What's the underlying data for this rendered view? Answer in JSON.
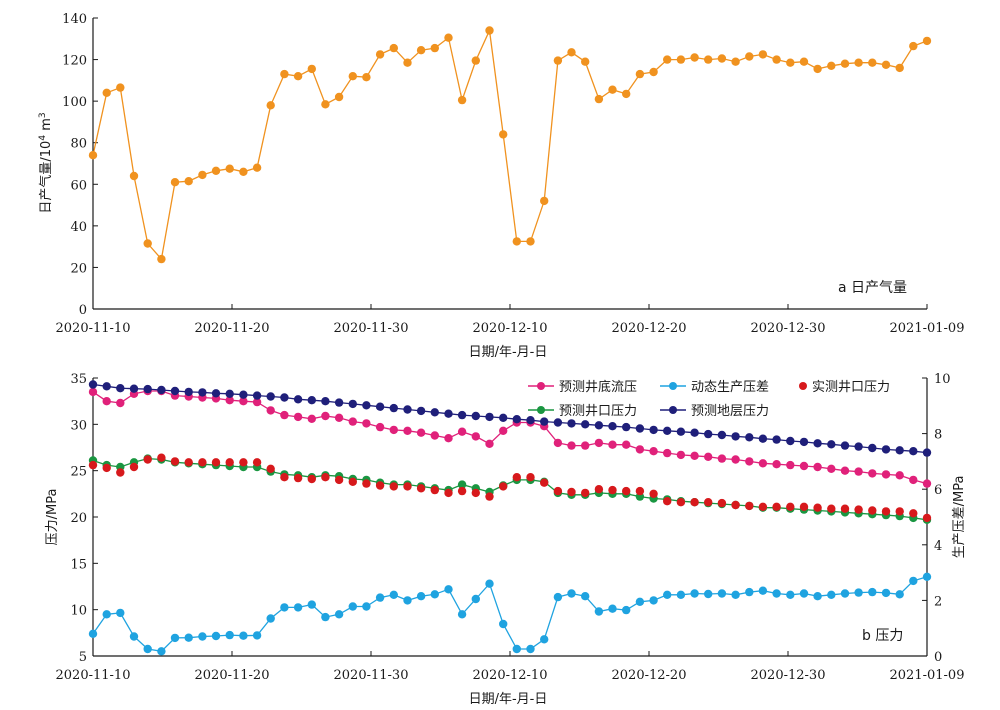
{
  "chart_data": [
    {
      "id": "a",
      "type": "line",
      "annotation": "a 日产气量",
      "xlabel": "日期/年-月-日",
      "ylabel": "日产气量/10",
      "ylabel_power": "4",
      "ylabel_unit": " m",
      "ylabel_unit_power": "3",
      "ylim": [
        0,
        140
      ],
      "yticks": [
        0,
        20,
        40,
        60,
        80,
        100,
        120,
        140
      ],
      "x_start": "2020-11-10",
      "x_span_days": 60,
      "xticks": [
        "2020-11-10",
        "2020-11-20",
        "2020-11-30",
        "2020-12-10",
        "2020-12-20",
        "2020-12-30",
        "2021-01-09"
      ],
      "xtick_days": [
        0,
        10,
        20,
        30,
        40,
        50,
        60
      ],
      "series": [
        {
          "name": "日产气量",
          "color": "#f0921f",
          "values": [
            74,
            104,
            106.5,
            64,
            31.5,
            24,
            61,
            61.5,
            64.5,
            66.5,
            67.5,
            66,
            68,
            98,
            113,
            112,
            115.5,
            98.5,
            102,
            112,
            111.5,
            122.5,
            125.5,
            118.5,
            124.5,
            125.5,
            130.5,
            100.5,
            119.5,
            134,
            84,
            32.5,
            32.5,
            52,
            119.5,
            123.5,
            119,
            101,
            105.5,
            103.5,
            113,
            114,
            120,
            120,
            121,
            120,
            120.5,
            119,
            121.5,
            122.5,
            120,
            118.5,
            119,
            115.5,
            117,
            118,
            118.5,
            118.5,
            117.5,
            116,
            126.5,
            129
          ]
        }
      ]
    },
    {
      "id": "b",
      "type": "line",
      "annotation": "b 压力",
      "xlabel": "日期/年-月-日",
      "ylabel": "压力/MPa",
      "y2label": "生产压差/MPa",
      "ylim": [
        5,
        35
      ],
      "yticks": [
        5,
        10,
        15,
        20,
        25,
        30,
        35
      ],
      "y2lim": [
        0,
        10
      ],
      "y2ticks": [
        0,
        2,
        4,
        6,
        8,
        10
      ],
      "x_start": "2020-11-10",
      "x_span_days": 60,
      "xticks": [
        "2020-11-10",
        "2020-11-20",
        "2020-11-30",
        "2020-12-10",
        "2020-12-20",
        "2020-12-30",
        "2021-01-09"
      ],
      "xtick_days": [
        0,
        10,
        20,
        30,
        40,
        50,
        60
      ],
      "legend": [
        "预测井底流压",
        "动态生产压差",
        "实测井口压力",
        "预测井口压力",
        "预测地层压力"
      ],
      "series": [
        {
          "name": "预测井底流压",
          "color": "#e0217a",
          "axis": "left",
          "markers_only": false,
          "values": [
            33.5,
            32.5,
            32.3,
            33.3,
            33.6,
            33.6,
            33.1,
            33.0,
            32.9,
            32.8,
            32.6,
            32.5,
            32.4,
            31.5,
            31.0,
            30.8,
            30.6,
            30.9,
            30.7,
            30.3,
            30.1,
            29.7,
            29.4,
            29.3,
            29.1,
            28.8,
            28.5,
            29.2,
            28.7,
            27.9,
            29.3,
            30.2,
            30.2,
            29.8,
            28.0,
            27.7,
            27.7,
            28.0,
            27.8,
            27.8,
            27.3,
            27.1,
            26.9,
            26.7,
            26.6,
            26.5,
            26.3,
            26.2,
            26.0,
            25.8,
            25.7,
            25.6,
            25.5,
            25.4,
            25.2,
            25.0,
            24.9,
            24.7,
            24.6,
            24.5,
            24.0,
            23.6
          ]
        },
        {
          "name": "预测井口压力",
          "color": "#1a9641",
          "axis": "left",
          "markers_only": false,
          "values": [
            26.1,
            25.6,
            25.4,
            25.9,
            26.3,
            26.2,
            25.9,
            25.8,
            25.7,
            25.6,
            25.5,
            25.4,
            25.4,
            24.9,
            24.6,
            24.5,
            24.3,
            24.5,
            24.4,
            24.1,
            24.0,
            23.7,
            23.5,
            23.5,
            23.3,
            23.1,
            22.9,
            23.5,
            23.1,
            22.7,
            23.4,
            24.0,
            24.0,
            23.8,
            22.6,
            22.4,
            22.4,
            22.6,
            22.5,
            22.5,
            22.2,
            22.0,
            21.9,
            21.7,
            21.6,
            21.5,
            21.4,
            21.3,
            21.2,
            21.0,
            21.0,
            20.9,
            20.8,
            20.7,
            20.6,
            20.5,
            20.4,
            20.3,
            20.2,
            20.1,
            19.9,
            19.7
          ]
        },
        {
          "name": "实测井口压力",
          "color": "#d7191c",
          "axis": "left",
          "markers_only": true,
          "values": [
            25.6,
            25.3,
            24.8,
            25.4,
            26.2,
            26.4,
            26.0,
            25.9,
            25.9,
            25.9,
            25.9,
            25.9,
            25.9,
            25.2,
            24.3,
            24.2,
            24.1,
            24.3,
            24.0,
            23.8,
            23.6,
            23.4,
            23.3,
            23.3,
            23.1,
            22.9,
            22.6,
            22.8,
            22.6,
            22.2,
            23.3,
            24.3,
            24.3,
            23.7,
            22.8,
            22.7,
            22.6,
            23.0,
            22.9,
            22.8,
            22.8,
            22.5,
            21.7,
            21.6,
            21.6,
            21.6,
            21.5,
            21.3,
            21.2,
            21.1,
            21.1,
            21.1,
            21.1,
            21.0,
            20.9,
            20.9,
            20.8,
            20.7,
            20.6,
            20.6,
            20.4,
            19.9
          ]
        },
        {
          "name": "预测地层压力",
          "color": "#1f1f7a",
          "axis": "left",
          "markers_only": false,
          "values": [
            34.3,
            34.1,
            33.9,
            33.85,
            33.8,
            33.7,
            33.6,
            33.5,
            33.45,
            33.35,
            33.3,
            33.2,
            33.1,
            33.0,
            32.9,
            32.7,
            32.6,
            32.5,
            32.35,
            32.2,
            32.05,
            31.9,
            31.75,
            31.6,
            31.45,
            31.3,
            31.15,
            31.0,
            30.9,
            30.8,
            30.7,
            30.55,
            30.45,
            30.3,
            30.2,
            30.1,
            30.0,
            29.9,
            29.8,
            29.7,
            29.55,
            29.4,
            29.3,
            29.2,
            29.1,
            28.95,
            28.85,
            28.7,
            28.6,
            28.45,
            28.35,
            28.2,
            28.1,
            27.95,
            27.85,
            27.7,
            27.6,
            27.45,
            27.3,
            27.2,
            27.1,
            26.95
          ]
        },
        {
          "name": "动态生产压差",
          "color": "#1fa3e0",
          "axis": "right",
          "markers_only": false,
          "values": [
            0.8,
            1.5,
            1.55,
            0.7,
            0.25,
            0.17,
            0.65,
            0.66,
            0.7,
            0.72,
            0.75,
            0.73,
            0.74,
            1.35,
            1.75,
            1.75,
            1.85,
            1.4,
            1.5,
            1.78,
            1.78,
            2.1,
            2.2,
            2.0,
            2.15,
            2.22,
            2.4,
            1.5,
            2.05,
            2.6,
            1.15,
            0.25,
            0.25,
            0.6,
            2.12,
            2.25,
            2.15,
            1.6,
            1.7,
            1.65,
            1.95,
            2.0,
            2.2,
            2.2,
            2.25,
            2.23,
            2.25,
            2.2,
            2.3,
            2.35,
            2.25,
            2.2,
            2.25,
            2.15,
            2.2,
            2.25,
            2.28,
            2.3,
            2.27,
            2.22,
            2.7,
            2.85
          ]
        }
      ]
    }
  ]
}
